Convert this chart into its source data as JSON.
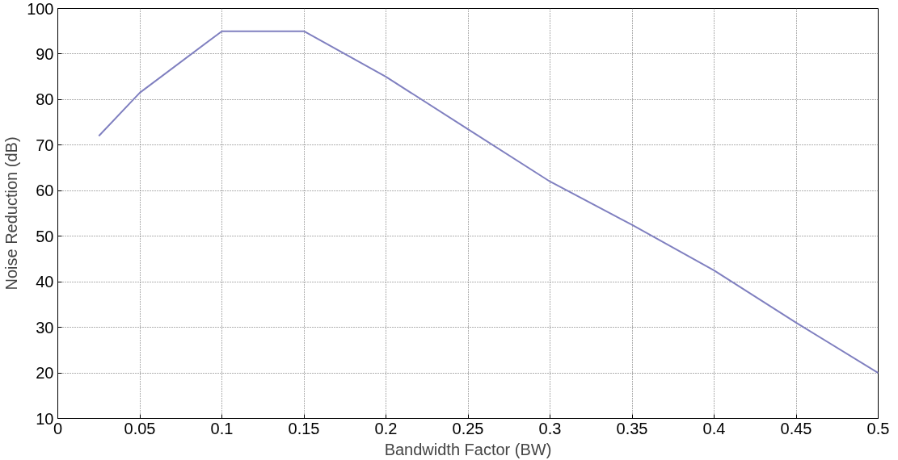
{
  "chart_data": {
    "type": "line",
    "xlabel": "Bandwidth Factor (BW)",
    "ylabel": "Noise Reduction (dB)",
    "x": [
      0.025,
      0.05,
      0.1,
      0.15,
      0.2,
      0.25,
      0.3,
      0.35,
      0.4,
      0.45,
      0.5
    ],
    "series": [
      {
        "color": "#8080c0",
        "values": [
          72,
          81.5,
          95,
          95,
          85,
          73.5,
          62,
          52.5,
          42.5,
          31,
          20
        ]
      }
    ],
    "xlim": [
      0,
      0.5
    ],
    "ylim": [
      10,
      100
    ],
    "xticks": [
      0,
      0.05,
      0.1,
      0.15,
      0.2,
      0.25,
      0.3,
      0.35,
      0.4,
      0.45,
      0.5
    ],
    "yticks": [
      10,
      20,
      30,
      40,
      50,
      60,
      70,
      80,
      90,
      100
    ],
    "grid": true,
    "marker": "none",
    "line_style": "solid"
  }
}
